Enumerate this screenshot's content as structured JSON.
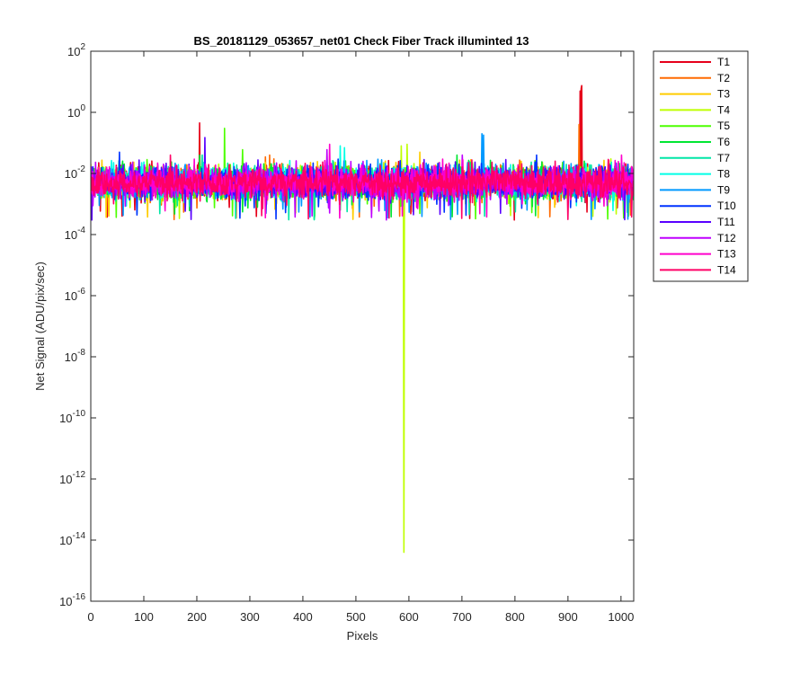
{
  "chart_data": {
    "type": "line",
    "title": "BS_20181129_053657_net01   Check Fiber     Track illuminted 13",
    "xlabel": "Pixels",
    "ylabel": "Net Signal (ADU/pix/sec)",
    "xlim": [
      0,
      1024
    ],
    "ylim": [
      1e-16,
      100
    ],
    "yscale": "log",
    "grid": false,
    "legend_position": "outside-top-right",
    "xticks": [
      0,
      100,
      200,
      300,
      400,
      500,
      600,
      700,
      800,
      900,
      1000
    ],
    "xtick_labels": [
      "0",
      "100",
      "200",
      "300",
      "400",
      "500",
      "600",
      "700",
      "800",
      "900",
      "1000"
    ],
    "yticks": [
      {
        "value": 1e-16,
        "base": "10",
        "exp": "-16"
      },
      {
        "value": 1e-14,
        "base": "10",
        "exp": "-14"
      },
      {
        "value": 1e-12,
        "base": "10",
        "exp": "-12"
      },
      {
        "value": 1e-10,
        "base": "10",
        "exp": "-10"
      },
      {
        "value": 1e-08,
        "base": "10",
        "exp": "-8"
      },
      {
        "value": 1e-06,
        "base": "10",
        "exp": "-6"
      },
      {
        "value": 0.0001,
        "base": "10",
        "exp": "-4"
      },
      {
        "value": 0.01,
        "base": "10",
        "exp": "-2"
      },
      {
        "value": 1,
        "base": "10",
        "exp": "0"
      },
      {
        "value": 100,
        "base": "10",
        "exp": "2"
      }
    ],
    "noise_model": {
      "note": "Every track shows dense noise between roughly 3e-4 and 3e-2 across all 1024 pixels, centred near 5e-3.",
      "x_start": 0,
      "x_end": 1024,
      "points": 1024,
      "median": 0.005,
      "min": 0.0003,
      "max": 0.03
    },
    "series": [
      {
        "name": "T1",
        "color": "#E6001A",
        "spikes": [
          {
            "x": 205,
            "y": 0.45
          },
          {
            "x": 925,
            "y": 7.5
          },
          {
            "x": 924,
            "y": 6
          },
          {
            "x": 922,
            "y": 5
          },
          {
            "x": 798,
            "y": 0.0003
          }
        ]
      },
      {
        "name": "T2",
        "color": "#FF6A00",
        "spikes": [
          {
            "x": 329,
            "y": 0.035
          },
          {
            "x": 337,
            "y": 0.04
          },
          {
            "x": 345,
            "y": 0.03
          },
          {
            "x": 920,
            "y": 0.4
          },
          {
            "x": 582,
            "y": 0.0004
          }
        ]
      },
      {
        "name": "T3",
        "color": "#FFCC00",
        "spikes": [
          {
            "x": 445,
            "y": 0.04
          },
          {
            "x": 620,
            "y": 0.05
          }
        ]
      },
      {
        "name": "T4",
        "color": "#BFFF00",
        "spikes": [
          {
            "x": 585,
            "y": 0.08
          },
          {
            "x": 590,
            "y": 4e-15
          },
          {
            "x": 596,
            "y": 0.09
          }
        ]
      },
      {
        "name": "T5",
        "color": "#4DFF00",
        "spikes": [
          {
            "x": 252,
            "y": 0.3
          },
          {
            "x": 286,
            "y": 0.06
          }
        ]
      },
      {
        "name": "T6",
        "color": "#00E633",
        "spikes": [
          {
            "x": 205,
            "y": 0.04
          },
          {
            "x": 690,
            "y": 0.04
          }
        ]
      },
      {
        "name": "T7",
        "color": "#00E6A6",
        "spikes": [
          {
            "x": 210,
            "y": 0.04
          }
        ]
      },
      {
        "name": "T8",
        "color": "#00FFE6",
        "spikes": [
          {
            "x": 470,
            "y": 0.08
          },
          {
            "x": 478,
            "y": 0.07
          }
        ]
      },
      {
        "name": "T9",
        "color": "#0099FF",
        "spikes": [
          {
            "x": 737,
            "y": 0.2
          },
          {
            "x": 740,
            "y": 0.18
          }
        ]
      },
      {
        "name": "T10",
        "color": "#0033FF",
        "spikes": [
          {
            "x": 54,
            "y": 0.05
          },
          {
            "x": 840,
            "y": 0.04
          }
        ]
      },
      {
        "name": "T11",
        "color": "#5900FF",
        "spikes": [
          {
            "x": 215,
            "y": 0.15
          },
          {
            "x": 2,
            "y": 0.0003
          }
        ]
      },
      {
        "name": "T12",
        "color": "#BF00FF",
        "spikes": [
          {
            "x": 445,
            "y": 0.06
          },
          {
            "x": 700,
            "y": 0.04
          }
        ]
      },
      {
        "name": "T13",
        "color": "#FF00CC",
        "spikes": [
          {
            "x": 450,
            "y": 0.09
          },
          {
            "x": 1000,
            "y": 0.04
          }
        ]
      },
      {
        "name": "T14",
        "color": "#FF0066",
        "spikes": [
          {
            "x": 150,
            "y": 0.04
          }
        ]
      }
    ]
  }
}
